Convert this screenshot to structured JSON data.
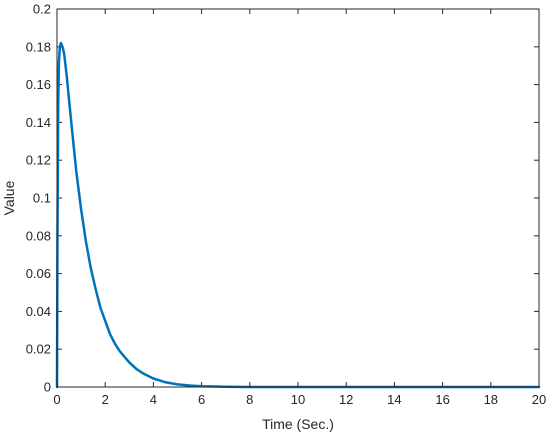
{
  "chart_data": {
    "type": "line",
    "title": "",
    "xlabel": "Time (Sec.)",
    "ylabel": "Value",
    "xlim": [
      0,
      20
    ],
    "ylim": [
      0,
      0.2
    ],
    "xticks": [
      0,
      2,
      4,
      6,
      8,
      10,
      12,
      14,
      16,
      18,
      20
    ],
    "xtick_labels": [
      "0",
      "2",
      "4",
      "6",
      "8",
      "10",
      "12",
      "14",
      "16",
      "18",
      "20"
    ],
    "yticks": [
      0,
      0.02,
      0.04,
      0.06,
      0.08,
      0.1,
      0.12,
      0.14,
      0.16,
      0.18,
      0.2
    ],
    "ytick_labels": [
      "0",
      "0.02",
      "0.04",
      "0.06",
      "0.08",
      "0.1",
      "0.12",
      "0.14",
      "0.16",
      "0.18",
      "0.2"
    ],
    "grid": false,
    "series": [
      {
        "color": "#0072BD",
        "x": [
          0,
          0.02,
          0.05,
          0.08,
          0.12,
          0.16,
          0.2,
          0.25,
          0.3,
          0.4,
          0.5,
          0.6,
          0.8,
          1.0,
          1.2,
          1.4,
          1.6,
          1.8,
          2.0,
          2.2,
          2.4,
          2.6,
          2.8,
          3.0,
          3.3,
          3.6,
          4.0,
          4.5,
          5.0,
          5.5,
          6.0,
          7.0,
          8.0,
          9.0,
          10.0,
          12.0,
          14.0,
          16.0,
          18.0,
          20.0
        ],
        "y": [
          0,
          0.08,
          0.15,
          0.172,
          0.18,
          0.182,
          0.181,
          0.179,
          0.176,
          0.165,
          0.152,
          0.139,
          0.114,
          0.094,
          0.077,
          0.063,
          0.052,
          0.042,
          0.035,
          0.028,
          0.023,
          0.019,
          0.016,
          0.013,
          0.0095,
          0.007,
          0.0045,
          0.0025,
          0.0014,
          0.0008,
          0.0004,
          0.0001,
          0,
          0,
          0,
          0,
          0,
          0,
          0,
          0
        ]
      }
    ]
  }
}
